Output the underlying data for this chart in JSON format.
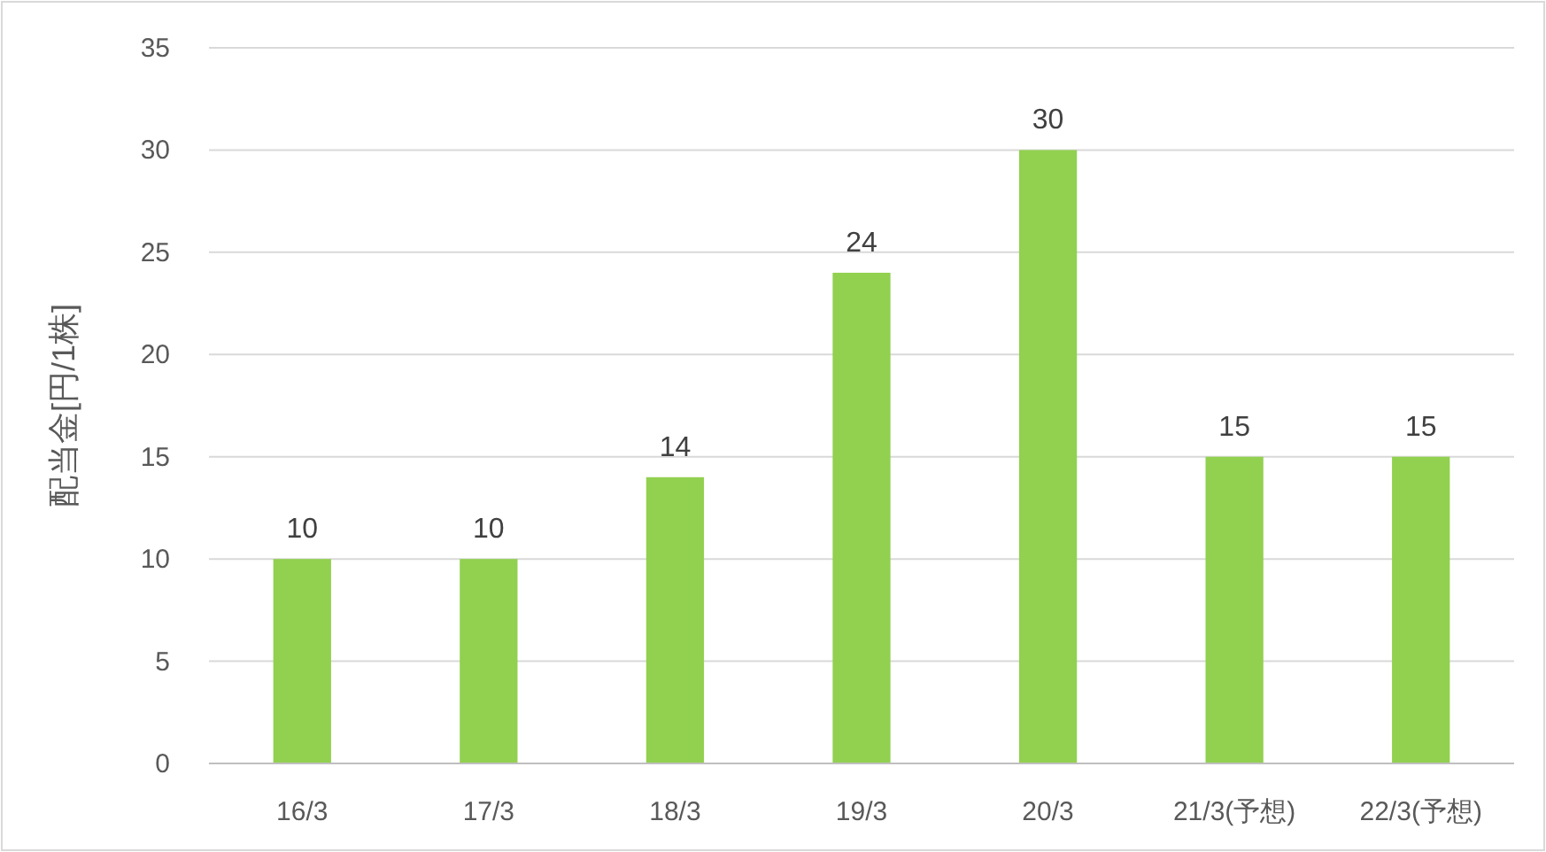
{
  "chart_data": {
    "type": "bar",
    "ylabel": "配当金[円/1株]",
    "categories": [
      "16/3",
      "17/3",
      "18/3",
      "19/3",
      "20/3",
      "21/3(予想)",
      "22/3(予想)"
    ],
    "values": [
      10,
      10,
      14,
      24,
      30,
      15,
      15
    ],
    "color": "#92d050",
    "ylim": [
      0,
      35
    ],
    "yticks": [
      0,
      5,
      10,
      15,
      20,
      25,
      30,
      35
    ],
    "grid": "y",
    "data_labels": true
  }
}
